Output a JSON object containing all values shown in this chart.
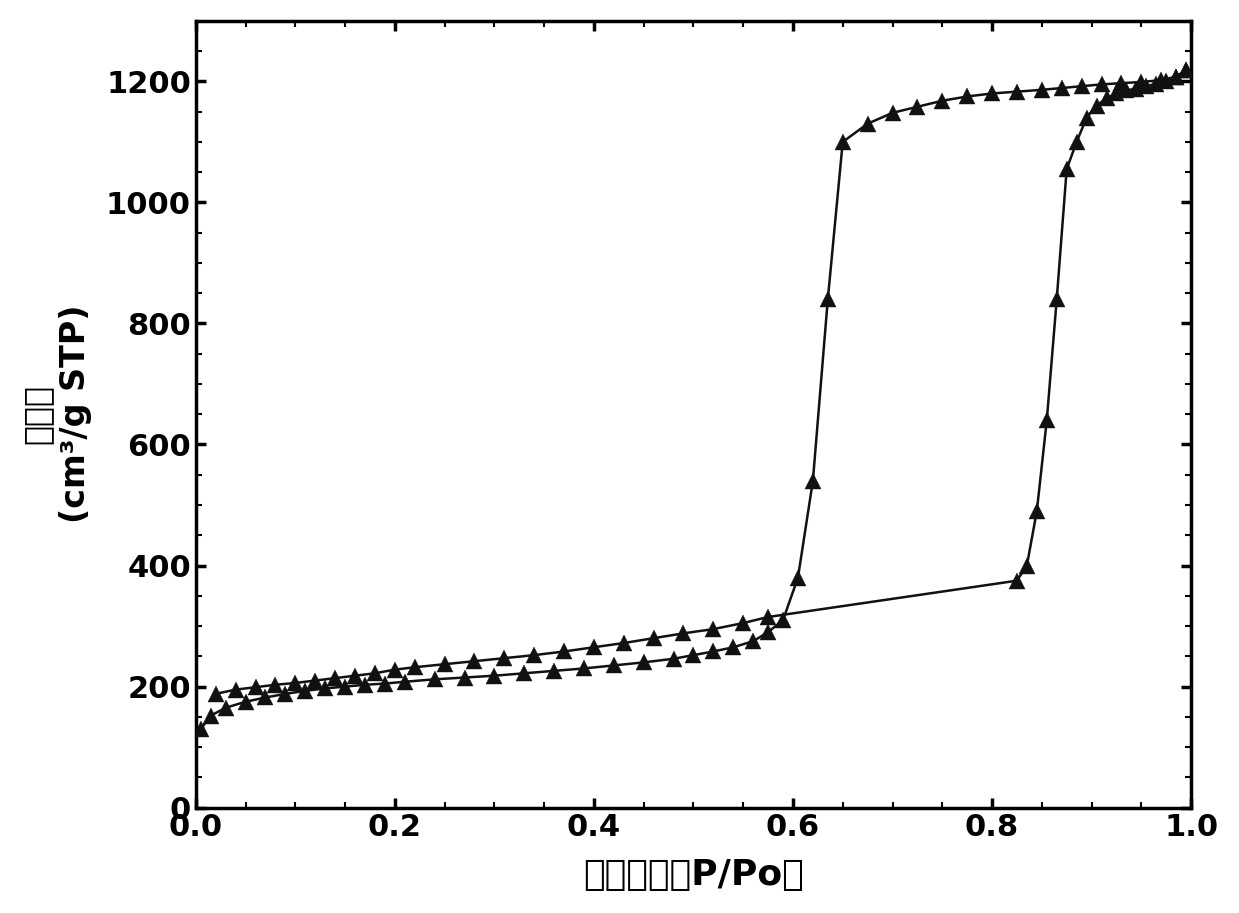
{
  "adsorption_x": [
    0.005,
    0.015,
    0.03,
    0.05,
    0.07,
    0.09,
    0.11,
    0.13,
    0.15,
    0.17,
    0.19,
    0.21,
    0.24,
    0.27,
    0.3,
    0.33,
    0.36,
    0.39,
    0.42,
    0.45,
    0.48,
    0.5,
    0.52,
    0.54,
    0.56,
    0.575,
    0.59,
    0.605,
    0.62,
    0.635,
    0.65,
    0.675,
    0.7,
    0.725,
    0.75,
    0.775,
    0.8,
    0.825,
    0.85,
    0.87,
    0.89,
    0.91,
    0.93,
    0.95,
    0.97,
    0.985,
    0.995
  ],
  "adsorption_y": [
    130,
    152,
    165,
    175,
    182,
    188,
    193,
    197,
    200,
    203,
    205,
    208,
    212,
    215,
    218,
    222,
    226,
    230,
    235,
    240,
    246,
    252,
    258,
    265,
    275,
    290,
    310,
    380,
    540,
    840,
    1100,
    1130,
    1148,
    1158,
    1168,
    1175,
    1180,
    1183,
    1186,
    1189,
    1192,
    1195,
    1197,
    1199,
    1202,
    1208,
    1218
  ],
  "desorption_x": [
    0.995,
    0.985,
    0.975,
    0.965,
    0.955,
    0.945,
    0.935,
    0.925,
    0.915,
    0.905,
    0.895,
    0.885,
    0.875,
    0.865,
    0.855,
    0.845,
    0.835,
    0.825,
    0.575,
    0.55,
    0.52,
    0.49,
    0.46,
    0.43,
    0.4,
    0.37,
    0.34,
    0.31,
    0.28,
    0.25,
    0.22,
    0.2,
    0.18,
    0.16,
    0.14,
    0.12,
    0.1,
    0.08,
    0.06,
    0.04,
    0.02
  ],
  "desorption_y": [
    1218,
    1208,
    1200,
    1196,
    1192,
    1188,
    1185,
    1180,
    1172,
    1160,
    1140,
    1100,
    1055,
    840,
    640,
    490,
    400,
    375,
    315,
    305,
    295,
    288,
    280,
    272,
    265,
    258,
    252,
    247,
    242,
    237,
    232,
    228,
    222,
    218,
    214,
    210,
    206,
    203,
    199,
    195,
    188
  ],
  "xlabel": "相对压力（P/Po）",
  "ylabel_line1": "吸附量",
  "ylabel_line2": "(cm³/g STP)",
  "xlim": [
    0.0,
    1.0
  ],
  "ylim": [
    0,
    1300
  ],
  "xticks": [
    0.0,
    0.2,
    0.4,
    0.6,
    0.8,
    1.0
  ],
  "yticks": [
    0,
    200,
    400,
    600,
    800,
    1000,
    1200
  ],
  "marker_color": "#111111",
  "line_color": "#111111",
  "bg_color": "#ffffff",
  "xlabel_fontsize": 26,
  "ylabel_fontsize": 24,
  "tick_fontsize": 22
}
